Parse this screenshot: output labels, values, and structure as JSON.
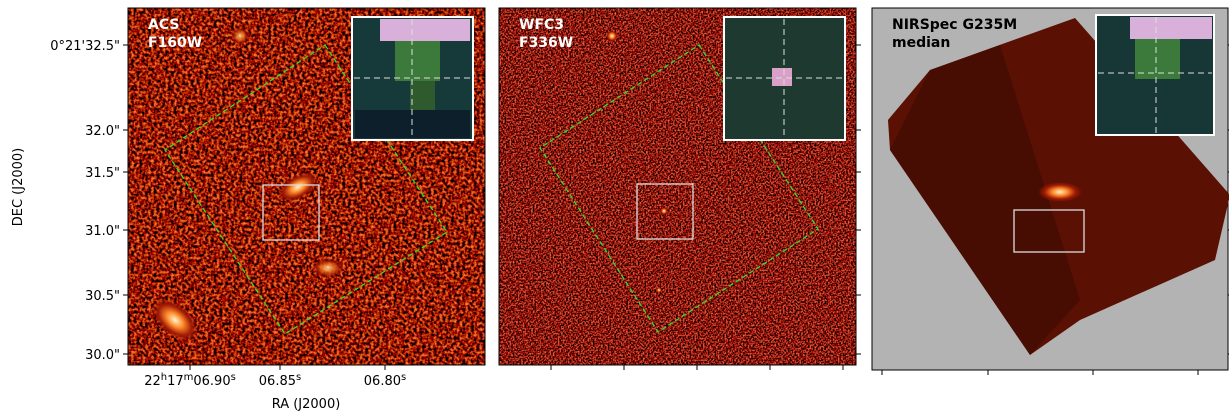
{
  "panels": [
    {
      "label_lines": [
        "ACS",
        "F160W"
      ]
    },
    {
      "label_lines": [
        "WFC3",
        "F336W"
      ]
    },
    {
      "label_lines": [
        "NIRSpec G235M",
        "median"
      ]
    }
  ],
  "y_axis": {
    "title": "DEC (J2000)",
    "tick_labels": [
      "0°21'32.5\"",
      "32.0\"",
      "31.5\"",
      "31.0\"",
      "30.5\"",
      "30.0\""
    ]
  },
  "x_axis": {
    "title": "RA (J2000)",
    "tick_labels": [
      [
        {
          "text": "22"
        },
        {
          "text": "h",
          "sup": true
        },
        {
          "text": "17"
        },
        {
          "text": "m",
          "sup": true
        },
        {
          "text": "06.90"
        },
        {
          "text": "s",
          "sup": true
        }
      ],
      [
        {
          "text": "06.85"
        },
        {
          "text": "s",
          "sup": true
        }
      ],
      [
        {
          "text": "06.80"
        },
        {
          "text": "s",
          "sup": true
        }
      ]
    ]
  }
}
